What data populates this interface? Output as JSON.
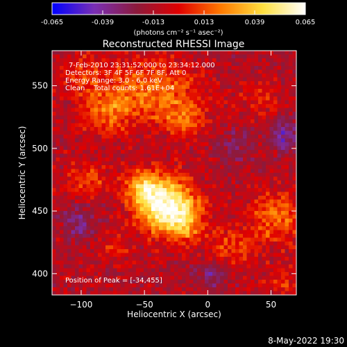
{
  "chart_data": {
    "type": "heatmap",
    "title": "Reconstructed RHESSI Image",
    "xlabel": "Heliocentric X (arcsec)",
    "ylabel": "Heliocentric Y (arcsec)",
    "xlim": [
      -123,
      70
    ],
    "ylim": [
      383,
      578
    ],
    "x_ticks": [
      -100,
      -50,
      0,
      50
    ],
    "y_ticks": [
      400,
      450,
      500,
      550
    ],
    "colorbar": {
      "min": -0.065,
      "max": 0.065,
      "ticks": [
        "-0.065",
        "-0.039",
        "-0.013",
        "0.013",
        "0.039",
        "0.065"
      ],
      "units_label": "(photons cm⁻² s⁻¹ asec⁻²)",
      "colors": [
        "#0000ff",
        "#7a2fb4",
        "#8c1a3c",
        "#e00000",
        "#ff7a00",
        "#ffe040",
        "#ffffff"
      ]
    },
    "annotations": [
      "7-Feb-2010 23:31:52.000 to 23:34:12.000",
      "Detectors: 3F 4F 5F 6F 7F 8F, Att 0",
      "Energy Range: 3.0 - 6.0 keV",
      "Clean    Total counts: 1.61E+04"
    ],
    "peak_label": "Position of Peak = [-34,455]",
    "peak": [
      -34,
      455
    ],
    "sources": [
      {
        "x": -34,
        "y": 455,
        "sx": 16,
        "sy": 15,
        "amp": 0.075
      },
      {
        "x": -52,
        "y": 470,
        "sx": 10,
        "sy": 9,
        "amp": 0.035
      },
      {
        "x": -18,
        "y": 440,
        "sx": 11,
        "sy": 11,
        "amp": 0.03
      },
      {
        "x": -45,
        "y": 548,
        "sx": 24,
        "sy": 16,
        "amp": 0.032
      },
      {
        "x": -80,
        "y": 530,
        "sx": 14,
        "sy": 14,
        "amp": 0.028
      },
      {
        "x": -20,
        "y": 525,
        "sx": 13,
        "sy": 11,
        "amp": 0.025
      },
      {
        "x": 55,
        "y": 445,
        "sx": 15,
        "sy": 14,
        "amp": 0.032
      },
      {
        "x": 20,
        "y": 420,
        "sx": 14,
        "sy": 12,
        "amp": 0.022
      },
      {
        "x": -95,
        "y": 475,
        "sx": 12,
        "sy": 10,
        "amp": 0.022
      },
      {
        "x": -100,
        "y": 560,
        "sx": 12,
        "sy": 11,
        "amp": 0.018
      },
      {
        "x": -75,
        "y": 420,
        "sx": 10,
        "sy": 9,
        "amp": 0.015
      },
      {
        "x": 40,
        "y": 540,
        "sx": 12,
        "sy": 10,
        "amp": 0.014
      },
      {
        "x": 60,
        "y": 395,
        "sx": 10,
        "sy": 8,
        "amp": 0.016
      },
      {
        "x": 60,
        "y": 510,
        "sx": 8,
        "sy": 8,
        "amp": -0.03
      },
      {
        "x": -100,
        "y": 440,
        "sx": 10,
        "sy": 10,
        "amp": -0.02
      },
      {
        "x": 5,
        "y": 400,
        "sx": 10,
        "sy": 8,
        "amp": -0.022
      },
      {
        "x": 20,
        "y": 500,
        "sx": 10,
        "sy": 10,
        "amp": -0.015
      }
    ]
  },
  "footer_timestamp": "8-May-2022 19:30"
}
